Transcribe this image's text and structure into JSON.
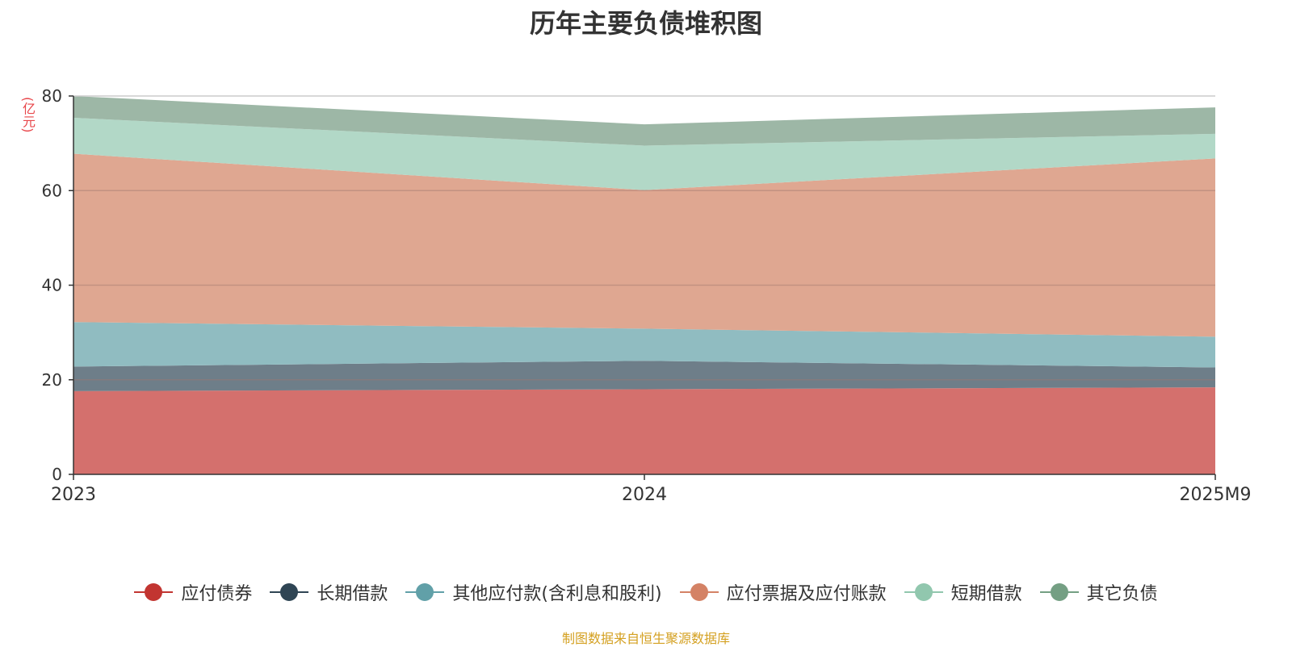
{
  "chart_data": {
    "type": "area",
    "stacked": true,
    "title": "历年主要负债堆积图",
    "ylabel": "(亿元)",
    "ylim": [
      0,
      80
    ],
    "yticks": [
      "0",
      "20",
      "40",
      "60",
      "80"
    ],
    "categories": [
      "2023",
      "2024",
      "2025M9"
    ],
    "grid": true,
    "legend_position": "bottom",
    "series": [
      {
        "name": "应付债券",
        "color": "#c23531",
        "fill": "#d4706d",
        "values": [
          17.6,
          18.0,
          18.4
        ]
      },
      {
        "name": "长期借款",
        "color": "#2f4554",
        "fill": "#6e7e89",
        "values": [
          5.2,
          6.0,
          4.2
        ]
      },
      {
        "name": "其他应付款(含利息和股利)",
        "color": "#61a0a8",
        "fill": "#90bcc1",
        "values": [
          9.4,
          6.8,
          6.5
        ]
      },
      {
        "name": "应付票据及应付账款",
        "color": "#d48265",
        "fill": "#dfa791",
        "values": [
          35.6,
          29.3,
          37.7
        ]
      },
      {
        "name": "短期借款",
        "color": "#91c7ae",
        "fill": "#b2d8c7",
        "values": [
          7.6,
          9.4,
          5.2
        ]
      },
      {
        "name": "其它负债",
        "color": "#749f83",
        "fill": "#9db7a6",
        "values": [
          4.6,
          4.5,
          5.6
        ]
      }
    ]
  },
  "footer": {
    "source": "制图数据来自恒生聚源数据库"
  }
}
